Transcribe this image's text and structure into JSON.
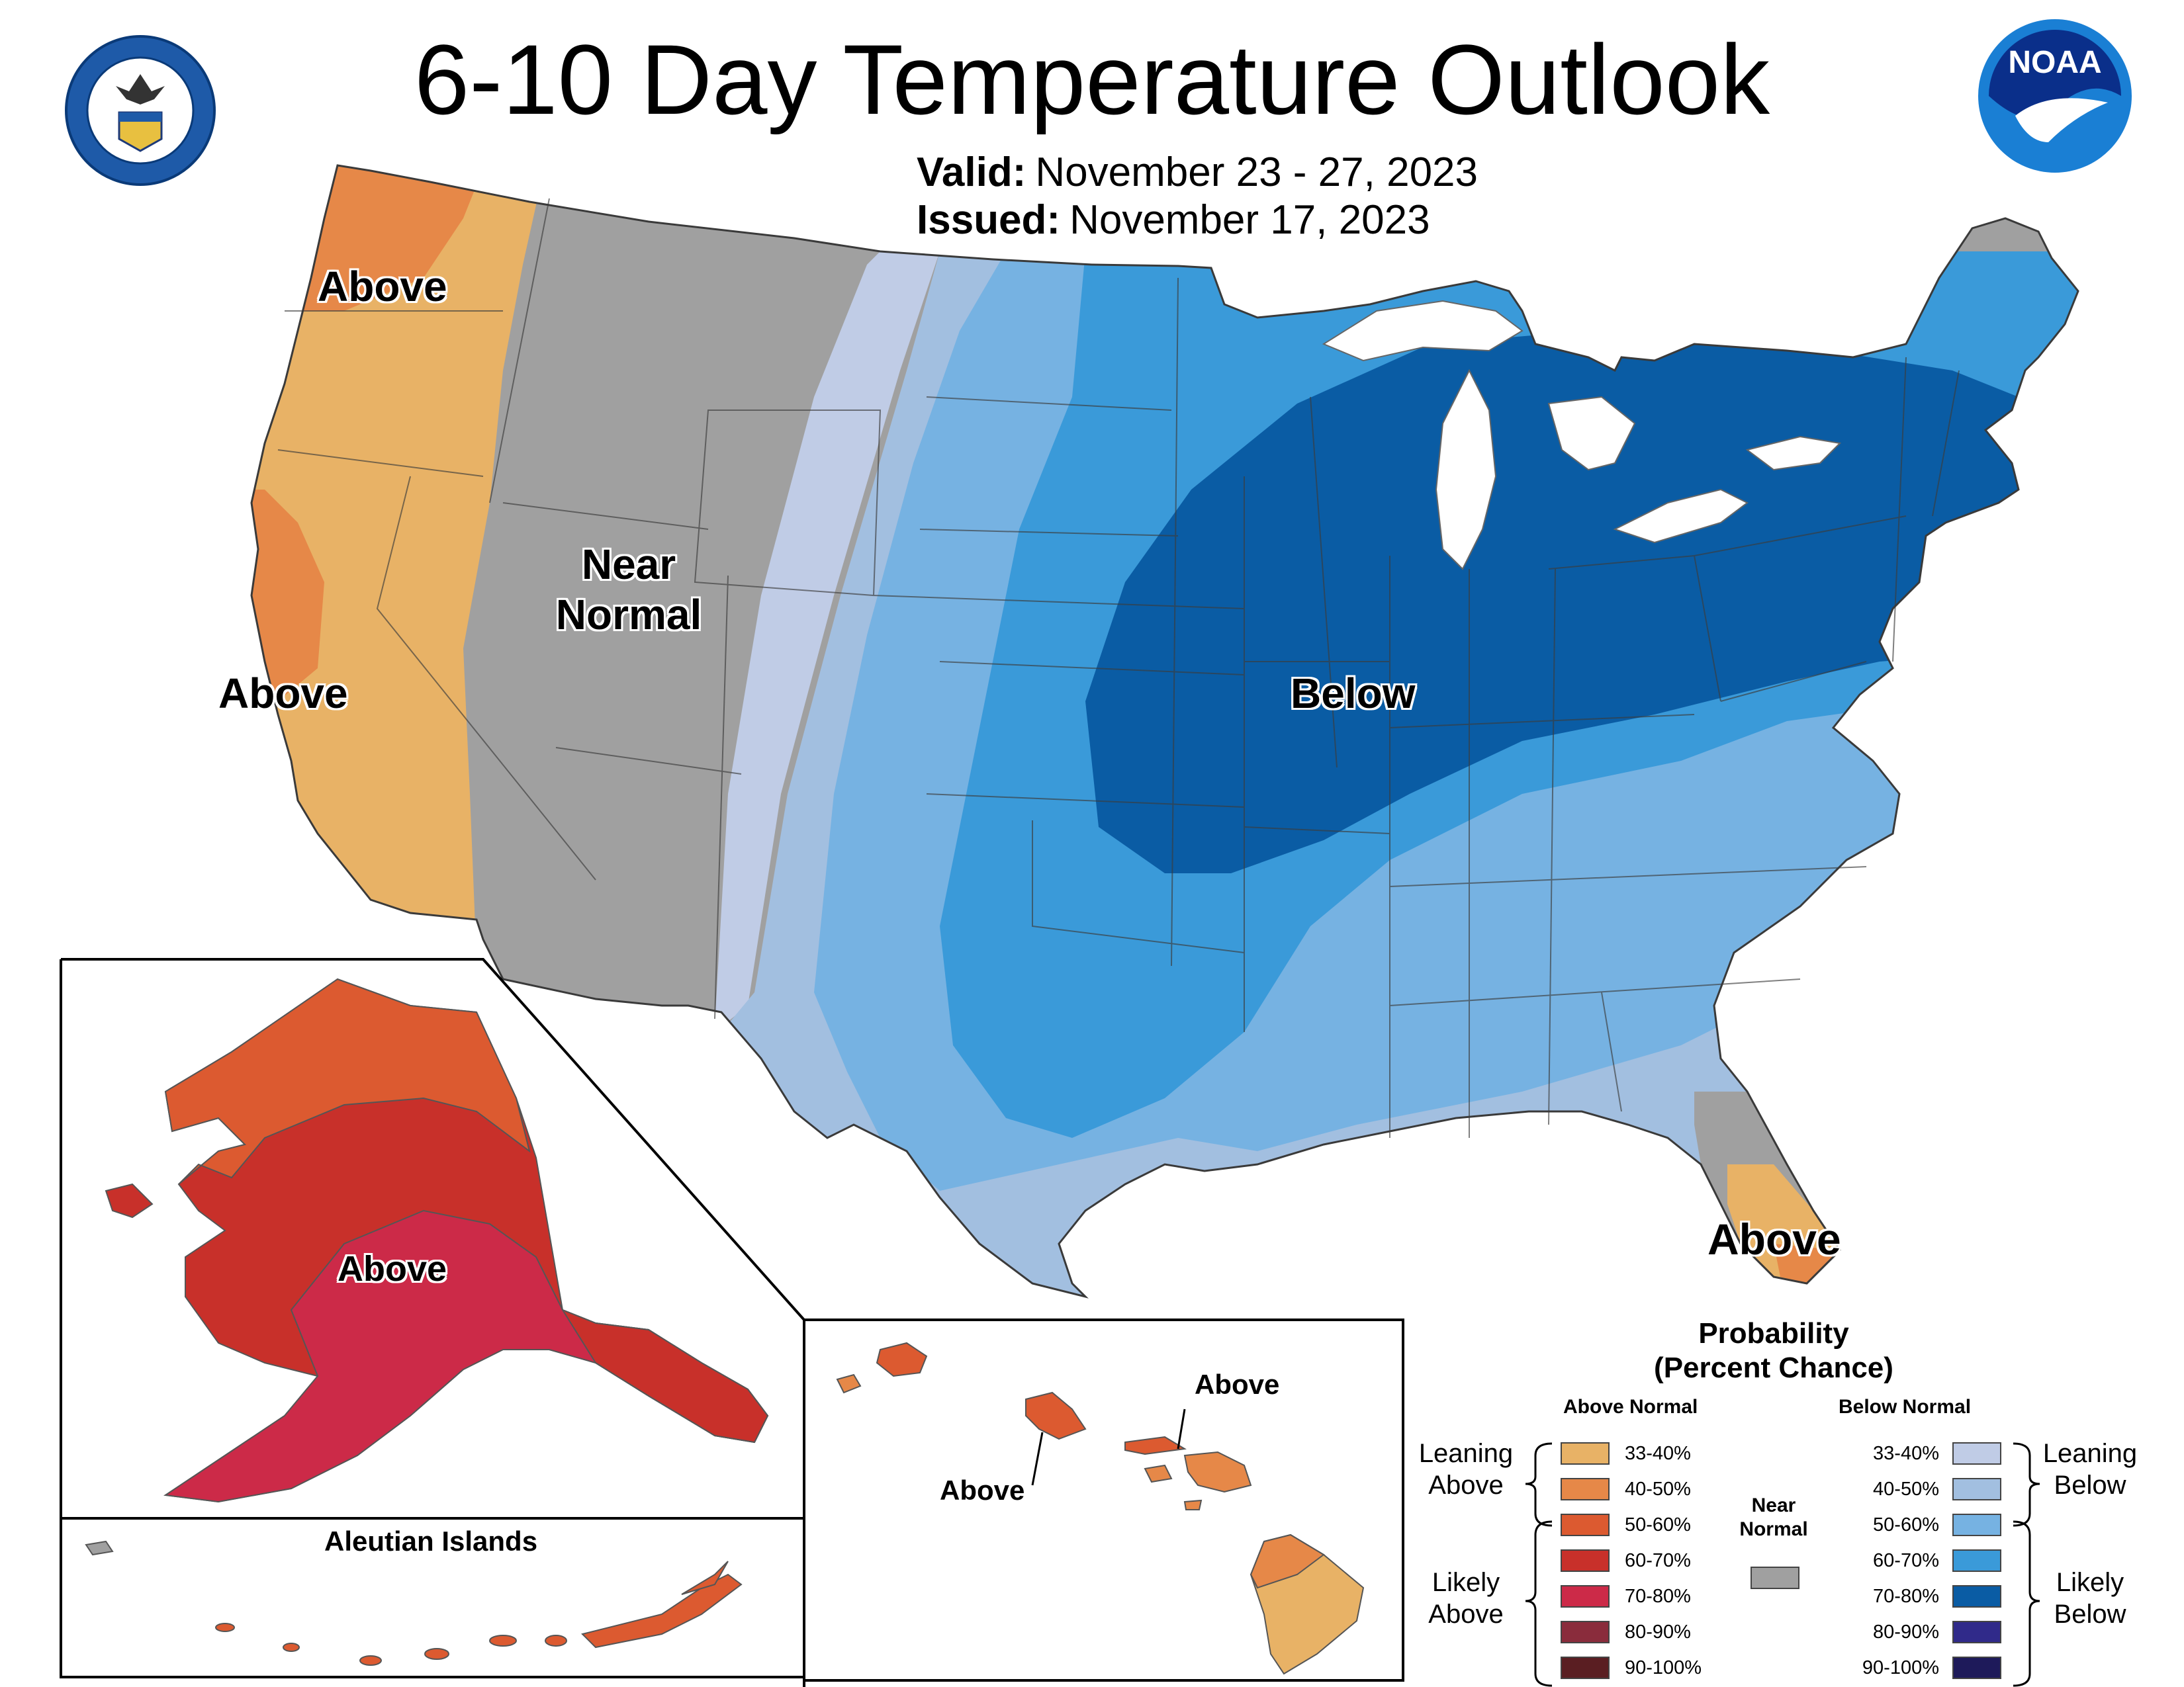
{
  "header": {
    "title": "6-10 Day Temperature Outlook",
    "valid_label": "Valid:",
    "valid_dates": "November 23 - 27, 2023",
    "issued_label": "Issued:",
    "issued_date": "November 17, 2023"
  },
  "logos": {
    "commerce_seal_text": "DEPARTMENT OF COMMERCE · UNITED STATES OF AMERICA",
    "noaa_text": "NOAA"
  },
  "map_labels": {
    "pacific_nw": "Above",
    "california": "Above",
    "near_normal": "Near Normal",
    "below": "Below",
    "florida": "Above",
    "alaska": "Above",
    "aleutians_title": "Aleutian Islands",
    "hawaii_north": "Above",
    "hawaii_south": "Above"
  },
  "legend": {
    "title_line1": "Probability",
    "title_line2": "(Percent Chance)",
    "above_header": "Above Normal",
    "below_header": "Below Normal",
    "near_normal_label": "Near Normal",
    "near_normal_color": "#a0a0a0",
    "leaning_above": "Leaning Above",
    "likely_above": "Likely Above",
    "leaning_below": "Leaning Below",
    "likely_below": "Likely Below",
    "above": [
      {
        "range": "33-40%",
        "color": "#e8b266"
      },
      {
        "range": "40-50%",
        "color": "#e68848"
      },
      {
        "range": "50-60%",
        "color": "#dc5a30"
      },
      {
        "range": "60-70%",
        "color": "#c8302a"
      },
      {
        "range": "70-80%",
        "color": "#cc2a48"
      },
      {
        "range": "80-90%",
        "color": "#8a2c3c"
      },
      {
        "range": "90-100%",
        "color": "#5a1e22"
      }
    ],
    "below": [
      {
        "range": "33-40%",
        "color": "#c0cce6"
      },
      {
        "range": "40-50%",
        "color": "#a2bfe0"
      },
      {
        "range": "50-60%",
        "color": "#76b2e2"
      },
      {
        "range": "60-70%",
        "color": "#3a9ad9"
      },
      {
        "range": "70-80%",
        "color": "#0a5ca4"
      },
      {
        "range": "80-90%",
        "color": "#302a8a"
      },
      {
        "range": "90-100%",
        "color": "#1e1a5a"
      }
    ]
  }
}
